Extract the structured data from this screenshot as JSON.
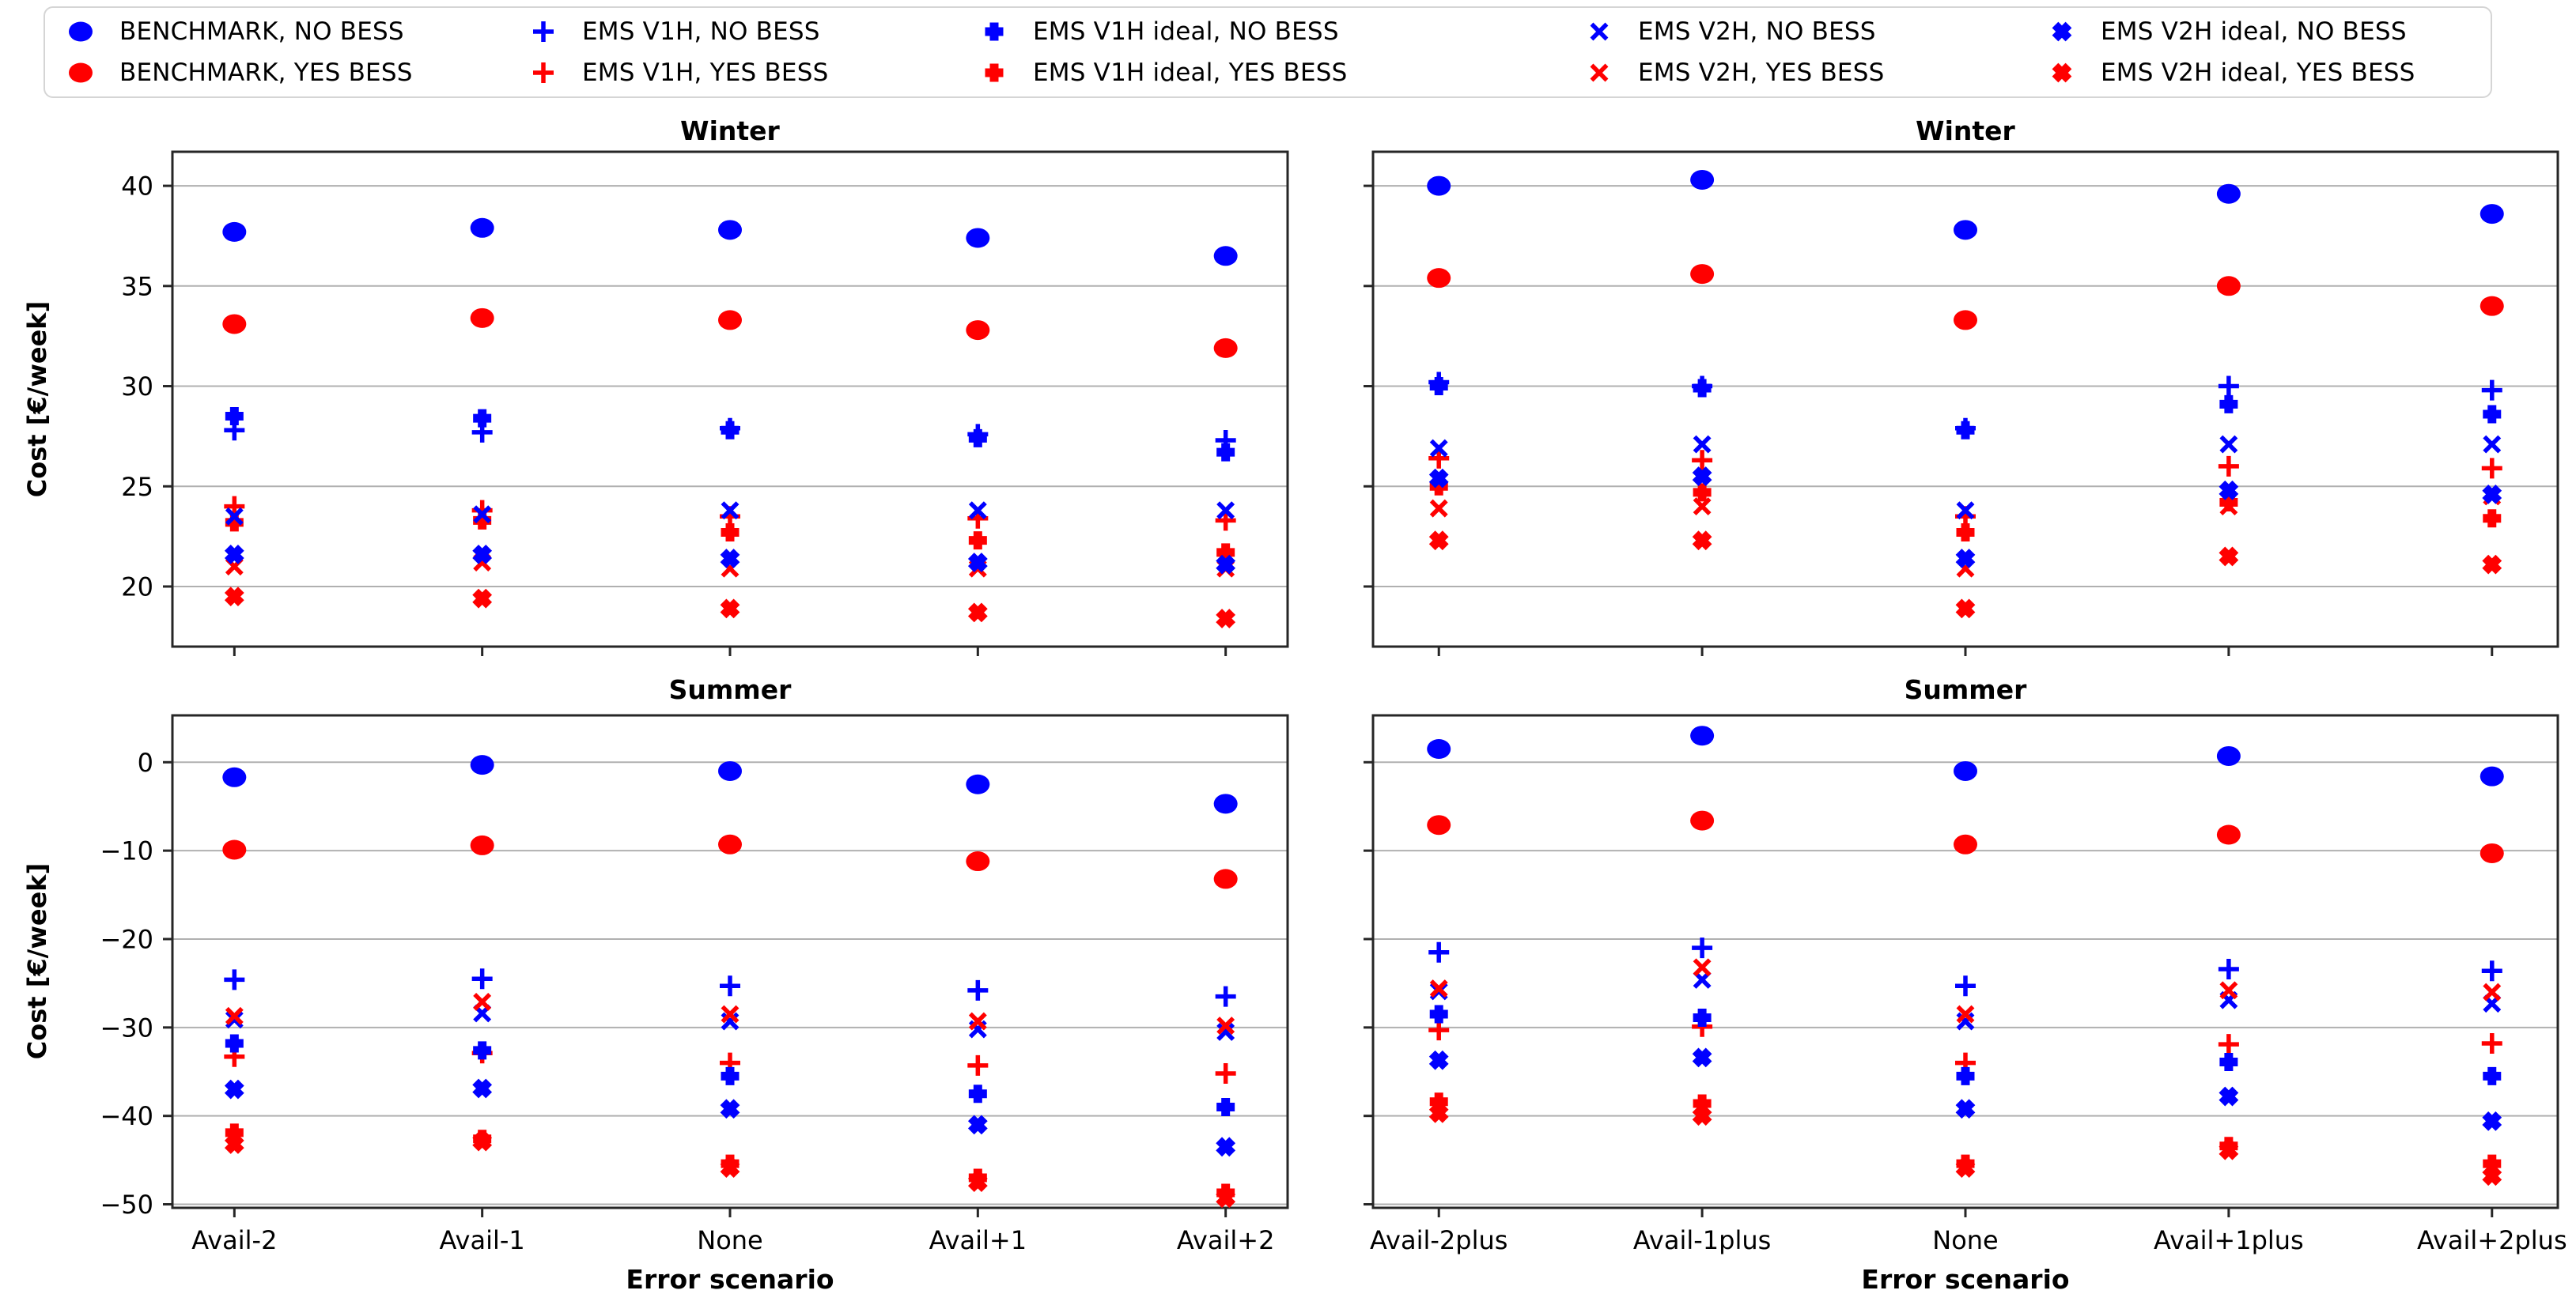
{
  "colors": {
    "blue": "#0000ff",
    "red": "#ff0000",
    "grid": "#b0b0b0",
    "frame": "#262626",
    "text": "#000000"
  },
  "ylabel": "Cost [€/week]",
  "legend": {
    "entries": [
      {
        "marker": "circle",
        "color": "blue",
        "label": "BENCHMARK, NO BESS"
      },
      {
        "marker": "circle",
        "color": "red",
        "label": "BENCHMARK, YES BESS"
      },
      {
        "marker": "plus",
        "color": "blue",
        "label": "EMS V1H, NO BESS"
      },
      {
        "marker": "plus",
        "color": "red",
        "label": "EMS V1H, YES BESS"
      },
      {
        "marker": "plus-bold",
        "color": "blue",
        "label": "EMS V1H ideal, NO BESS"
      },
      {
        "marker": "plus-bold",
        "color": "red",
        "label": "EMS V1H ideal, YES BESS"
      },
      {
        "marker": "x",
        "color": "blue",
        "label": "EMS V2H, NO BESS"
      },
      {
        "marker": "x",
        "color": "red",
        "label": "EMS V2H, YES BESS"
      },
      {
        "marker": "x-bold",
        "color": "blue",
        "label": "EMS V2H ideal, NO BESS"
      },
      {
        "marker": "x-bold",
        "color": "red",
        "label": "EMS V2H ideal, YES BESS"
      }
    ]
  },
  "chart_data": [
    {
      "id": "winter-left",
      "type": "scatter",
      "title": "Winter",
      "xlabel": "",
      "ylabel": "Cost [€/week]",
      "categories": [
        "Avail-2",
        "Avail-1",
        "None",
        "Avail+1",
        "Avail+2"
      ],
      "ylim": [
        17.0,
        41.7
      ],
      "yticks": [
        40,
        35,
        30,
        25,
        20
      ],
      "show_ytick_labels": true,
      "show_xtick_labels": false,
      "grid": true,
      "series": [
        {
          "name": "BENCHMARK, NO BESS",
          "marker": "circle",
          "color": "blue",
          "values": [
            37.7,
            37.9,
            37.8,
            37.4,
            36.5
          ]
        },
        {
          "name": "BENCHMARK, YES BESS",
          "marker": "circle",
          "color": "red",
          "values": [
            33.1,
            33.4,
            33.3,
            32.8,
            31.9
          ]
        },
        {
          "name": "EMS V1H, NO BESS",
          "marker": "plus",
          "color": "blue",
          "values": [
            27.8,
            27.7,
            27.9,
            27.6,
            27.3
          ]
        },
        {
          "name": "EMS V1H, YES BESS",
          "marker": "plus",
          "color": "red",
          "values": [
            24.0,
            23.8,
            23.5,
            23.4,
            23.3
          ]
        },
        {
          "name": "EMS V1H ideal, NO BESS",
          "marker": "plus-bold",
          "color": "blue",
          "values": [
            28.5,
            28.4,
            27.8,
            27.4,
            26.7
          ]
        },
        {
          "name": "EMS V1H ideal, YES BESS",
          "marker": "plus-bold",
          "color": "red",
          "values": [
            23.2,
            23.3,
            22.7,
            22.3,
            21.7
          ]
        },
        {
          "name": "EMS V2H, NO BESS",
          "marker": "x",
          "color": "blue",
          "values": [
            23.5,
            23.6,
            23.8,
            23.8,
            23.8
          ]
        },
        {
          "name": "EMS V2H, YES BESS",
          "marker": "x",
          "color": "red",
          "values": [
            21.0,
            21.2,
            20.9,
            20.9,
            20.9
          ]
        },
        {
          "name": "EMS V2H ideal, NO BESS",
          "marker": "x-bold",
          "color": "blue",
          "values": [
            21.6,
            21.6,
            21.4,
            21.2,
            21.1
          ]
        },
        {
          "name": "EMS V2H ideal, YES BESS",
          "marker": "x-bold",
          "color": "red",
          "values": [
            19.5,
            19.4,
            18.9,
            18.7,
            18.4
          ]
        }
      ]
    },
    {
      "id": "winter-right",
      "type": "scatter",
      "title": "Winter",
      "xlabel": "",
      "ylabel": "",
      "categories": [
        "Avail-2plus",
        "Avail-1plus",
        "None",
        "Avail+1plus",
        "Avail+2plus"
      ],
      "ylim": [
        17.0,
        41.7
      ],
      "yticks": [
        40,
        35,
        30,
        25,
        20
      ],
      "show_ytick_labels": false,
      "show_xtick_labels": false,
      "grid": true,
      "series": [
        {
          "name": "BENCHMARK, NO BESS",
          "marker": "circle",
          "color": "blue",
          "values": [
            40.0,
            40.3,
            37.8,
            39.6,
            38.6
          ]
        },
        {
          "name": "BENCHMARK, YES BESS",
          "marker": "circle",
          "color": "red",
          "values": [
            35.4,
            35.6,
            33.3,
            35.0,
            34.0
          ]
        },
        {
          "name": "EMS V1H, NO BESS",
          "marker": "plus",
          "color": "blue",
          "values": [
            30.2,
            30.0,
            27.9,
            30.0,
            29.8
          ]
        },
        {
          "name": "EMS V1H, YES BESS",
          "marker": "plus",
          "color": "red",
          "values": [
            26.4,
            26.3,
            23.5,
            26.0,
            25.9
          ]
        },
        {
          "name": "EMS V1H ideal, NO BESS",
          "marker": "plus-bold",
          "color": "blue",
          "values": [
            30.0,
            29.9,
            27.8,
            29.1,
            28.6
          ]
        },
        {
          "name": "EMS V1H ideal, YES BESS",
          "marker": "plus-bold",
          "color": "red",
          "values": [
            25.0,
            24.7,
            22.7,
            24.2,
            23.4
          ]
        },
        {
          "name": "EMS V2H, NO BESS",
          "marker": "x",
          "color": "blue",
          "values": [
            26.9,
            27.1,
            23.8,
            27.1,
            27.1
          ]
        },
        {
          "name": "EMS V2H, YES BESS",
          "marker": "x",
          "color": "red",
          "values": [
            23.9,
            24.0,
            20.9,
            24.0,
            24.5
          ]
        },
        {
          "name": "EMS V2H ideal, NO BESS",
          "marker": "x-bold",
          "color": "blue",
          "values": [
            25.4,
            25.5,
            21.4,
            24.8,
            24.6
          ]
        },
        {
          "name": "EMS V2H ideal, YES BESS",
          "marker": "x-bold",
          "color": "red",
          "values": [
            22.3,
            22.3,
            18.9,
            21.5,
            21.1
          ]
        }
      ]
    },
    {
      "id": "summer-left",
      "type": "scatter",
      "title": "Summer",
      "xlabel": "Error scenario",
      "ylabel": "Cost [€/week]",
      "categories": [
        "Avail-2",
        "Avail-1",
        "None",
        "Avail+1",
        "Avail+2"
      ],
      "ylim": [
        -50.4,
        5.3
      ],
      "yticks": [
        0,
        -10,
        -20,
        -30,
        -40,
        -50
      ],
      "show_ytick_labels": true,
      "show_xtick_labels": true,
      "grid": true,
      "series": [
        {
          "name": "BENCHMARK, NO BESS",
          "marker": "circle",
          "color": "blue",
          "values": [
            -1.7,
            -0.3,
            -1.0,
            -2.5,
            -4.7
          ]
        },
        {
          "name": "BENCHMARK, YES BESS",
          "marker": "circle",
          "color": "red",
          "values": [
            -9.9,
            -9.4,
            -9.3,
            -11.2,
            -13.2
          ]
        },
        {
          "name": "EMS V1H, NO BESS",
          "marker": "plus",
          "color": "blue",
          "values": [
            -24.6,
            -24.5,
            -25.3,
            -25.8,
            -26.5
          ]
        },
        {
          "name": "EMS V1H, YES BESS",
          "marker": "plus",
          "color": "red",
          "values": [
            -33.3,
            -32.9,
            -34.0,
            -34.3,
            -35.2
          ]
        },
        {
          "name": "EMS V1H ideal, NO BESS",
          "marker": "plus-bold",
          "color": "blue",
          "values": [
            -31.8,
            -32.6,
            -35.5,
            -37.5,
            -39.0
          ]
        },
        {
          "name": "EMS V1H ideal, YES BESS",
          "marker": "plus-bold",
          "color": "red",
          "values": [
            -41.9,
            -42.6,
            -45.4,
            -47.0,
            -48.7
          ]
        },
        {
          "name": "EMS V2H, NO BESS",
          "marker": "x",
          "color": "blue",
          "values": [
            -29.1,
            -28.4,
            -29.3,
            -30.2,
            -30.5
          ]
        },
        {
          "name": "EMS V2H, YES BESS",
          "marker": "x",
          "color": "red",
          "values": [
            -28.7,
            -27.1,
            -28.5,
            -29.3,
            -29.8
          ]
        },
        {
          "name": "EMS V2H ideal, NO BESS",
          "marker": "x-bold",
          "color": "blue",
          "values": [
            -37.0,
            -36.9,
            -39.2,
            -41.0,
            -43.5
          ]
        },
        {
          "name": "EMS V2H ideal, YES BESS",
          "marker": "x-bold",
          "color": "red",
          "values": [
            -43.2,
            -42.9,
            -45.9,
            -47.5,
            -49.3
          ]
        }
      ]
    },
    {
      "id": "summer-right",
      "type": "scatter",
      "title": "Summer",
      "xlabel": "Error scenario",
      "ylabel": "",
      "categories": [
        "Avail-2plus",
        "Avail-1plus",
        "None",
        "Avail+1plus",
        "Avail+2plus"
      ],
      "ylim": [
        -50.4,
        5.3
      ],
      "yticks": [
        0,
        -10,
        -20,
        -30,
        -40,
        -50
      ],
      "show_ytick_labels": false,
      "show_xtick_labels": true,
      "grid": true,
      "series": [
        {
          "name": "BENCHMARK, NO BESS",
          "marker": "circle",
          "color": "blue",
          "values": [
            1.5,
            3.0,
            -1.0,
            0.7,
            -1.6
          ]
        },
        {
          "name": "BENCHMARK, YES BESS",
          "marker": "circle",
          "color": "red",
          "values": [
            -7.1,
            -6.6,
            -9.3,
            -8.2,
            -10.3
          ]
        },
        {
          "name": "EMS V1H, NO BESS",
          "marker": "plus",
          "color": "blue",
          "values": [
            -21.5,
            -21.0,
            -25.3,
            -23.4,
            -23.6
          ]
        },
        {
          "name": "EMS V1H, YES BESS",
          "marker": "plus",
          "color": "red",
          "values": [
            -30.3,
            -29.9,
            -34.0,
            -31.9,
            -31.8
          ]
        },
        {
          "name": "EMS V1H ideal, NO BESS",
          "marker": "plus-bold",
          "color": "blue",
          "values": [
            -28.5,
            -28.9,
            -35.5,
            -33.9,
            -35.5
          ]
        },
        {
          "name": "EMS V1H ideal, YES BESS",
          "marker": "plus-bold",
          "color": "red",
          "values": [
            -38.4,
            -38.6,
            -45.4,
            -43.4,
            -45.4
          ]
        },
        {
          "name": "EMS V2H, NO BESS",
          "marker": "x",
          "color": "blue",
          "values": [
            -25.9,
            -24.6,
            -29.3,
            -26.9,
            -27.3
          ]
        },
        {
          "name": "EMS V2H, YES BESS",
          "marker": "x",
          "color": "red",
          "values": [
            -25.6,
            -23.2,
            -28.5,
            -25.8,
            -26.0
          ]
        },
        {
          "name": "EMS V2H ideal, NO BESS",
          "marker": "x-bold",
          "color": "blue",
          "values": [
            -33.7,
            -33.4,
            -39.2,
            -37.8,
            -40.6
          ]
        },
        {
          "name": "EMS V2H ideal, YES BESS",
          "marker": "x-bold",
          "color": "red",
          "values": [
            -39.7,
            -40.0,
            -45.9,
            -43.9,
            -46.8
          ]
        }
      ]
    }
  ]
}
